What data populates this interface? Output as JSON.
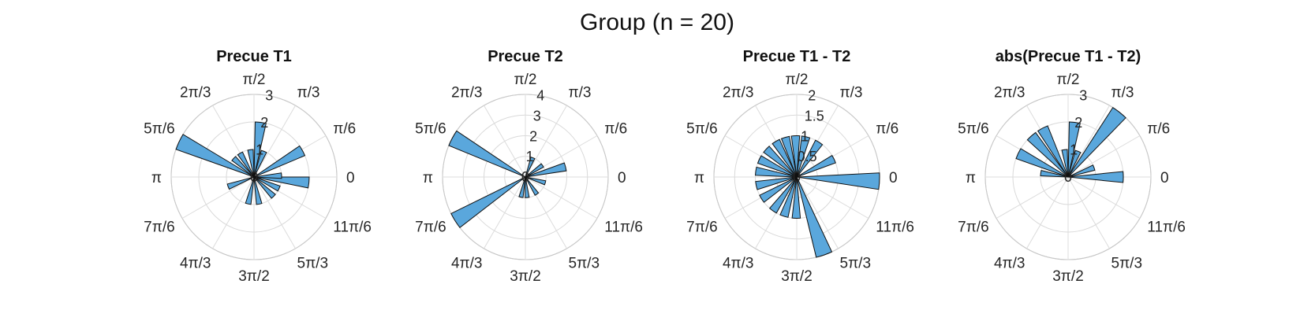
{
  "figure": {
    "suptitle": "Group (n = 20)",
    "colors": {
      "bar_fill": "#5aa7dc",
      "bar_edge": "#111111",
      "grid": "#d9d9d9",
      "text": "#262626"
    }
  },
  "chart_data": [
    {
      "type": "polar_histogram",
      "title": "Precue T1",
      "theta_tick_labels": [
        "0",
        "π/6",
        "π/3",
        "π/2",
        "2π/3",
        "5π/6",
        "π",
        "7π/6",
        "4π/3",
        "3π/2",
        "5π/3",
        "11π/6"
      ],
      "r_ticks": [
        "1",
        "2",
        "3"
      ],
      "rlim": [
        0,
        3
      ],
      "bins": [
        {
          "theta": -0.1,
          "r": 2.0
        },
        {
          "theta": 0.05,
          "r": 1.0
        },
        {
          "theta": 0.5,
          "r": 2.0
        },
        {
          "theta": 1.2,
          "r": 1.0
        },
        {
          "theta": 1.45,
          "r": 2.0
        },
        {
          "theta": 1.7,
          "r": 1.0
        },
        {
          "theta": 2.1,
          "r": 1.0
        },
        {
          "theta": 2.4,
          "r": 1.0
        },
        {
          "theta": 2.7,
          "r": 3.0
        },
        {
          "theta": 3.5,
          "r": 1.0
        },
        {
          "theta": 4.5,
          "r": 1.0
        },
        {
          "theta": 4.9,
          "r": 1.0
        },
        {
          "theta": 5.5,
          "r": 1.0
        },
        {
          "theta": 5.85,
          "r": 1.0
        }
      ]
    },
    {
      "type": "polar_histogram",
      "title": "Precue T2",
      "theta_tick_labels": [
        "0",
        "π/6",
        "π/3",
        "π/2",
        "2π/3",
        "5π/6",
        "π",
        "7π/6",
        "4π/3",
        "3π/2",
        "5π/3",
        "11π/6"
      ],
      "r_ticks": [
        "1",
        "2",
        "3",
        "4"
      ],
      "rlim": [
        0,
        4
      ],
      "bins": [
        {
          "theta": 0.25,
          "r": 2.0
        },
        {
          "theta": 0.6,
          "r": 1.0
        },
        {
          "theta": 1.2,
          "r": 1.0
        },
        {
          "theta": 2.65,
          "r": 4.0
        },
        {
          "theta": 3.7,
          "r": 4.0
        },
        {
          "theta": 4.5,
          "r": 1.0
        },
        {
          "theta": 4.8,
          "r": 1.0
        },
        {
          "theta": 5.3,
          "r": 1.0
        },
        {
          "theta": 6.0,
          "r": 1.0
        }
      ]
    },
    {
      "type": "polar_histogram",
      "title": "Precue T1 - T2",
      "theta_tick_labels": [
        "0",
        "π/6",
        "π/3",
        "π/2",
        "2π/3",
        "5π/6",
        "π",
        "7π/6",
        "4π/3",
        "3π/2",
        "5π/3",
        "11π/6"
      ],
      "r_ticks": [
        "0.5",
        "1",
        "1.5",
        "2"
      ],
      "rlim": [
        0,
        2
      ],
      "bins": [
        {
          "theta": -0.05,
          "r": 2.0
        },
        {
          "theta": 0.45,
          "r": 1.0
        },
        {
          "theta": 1.0,
          "r": 1.0
        },
        {
          "theta": 1.35,
          "r": 1.0
        },
        {
          "theta": 1.6,
          "r": 1.0
        },
        {
          "theta": 1.85,
          "r": 1.0
        },
        {
          "theta": 2.1,
          "r": 1.0
        },
        {
          "theta": 2.4,
          "r": 1.0
        },
        {
          "theta": 2.7,
          "r": 1.0
        },
        {
          "theta": 3.0,
          "r": 1.0
        },
        {
          "theta": 3.35,
          "r": 1.0
        },
        {
          "theta": 3.7,
          "r": 1.0
        },
        {
          "theta": 4.1,
          "r": 1.0
        },
        {
          "theta": 4.4,
          "r": 1.0
        },
        {
          "theta": 4.7,
          "r": 1.0
        },
        {
          "theta": 5.05,
          "r": 2.0
        }
      ]
    },
    {
      "type": "polar_histogram",
      "title": "abs(Precue T1 - T2)",
      "theta_tick_labels": [
        "0",
        "π/6",
        "π/3",
        "π/2",
        "2π/3",
        "5π/6",
        "π",
        "7π/6",
        "4π/3",
        "3π/2",
        "5π/3",
        "11π/6"
      ],
      "r_ticks": [
        "1",
        "2",
        "3"
      ],
      "rlim": [
        0,
        3
      ],
      "bins": [
        {
          "theta": 0.0,
          "r": 2.0
        },
        {
          "theta": 0.35,
          "r": 1.0
        },
        {
          "theta": 0.9,
          "r": 3.0
        },
        {
          "theta": 1.2,
          "r": 1.0
        },
        {
          "theta": 1.45,
          "r": 2.0
        },
        {
          "theta": 1.7,
          "r": 1.0
        },
        {
          "theta": 2.05,
          "r": 2.0
        },
        {
          "theta": 2.3,
          "r": 2.0
        },
        {
          "theta": 2.7,
          "r": 2.0
        },
        {
          "theta": 3.0,
          "r": 1.0
        }
      ]
    }
  ]
}
